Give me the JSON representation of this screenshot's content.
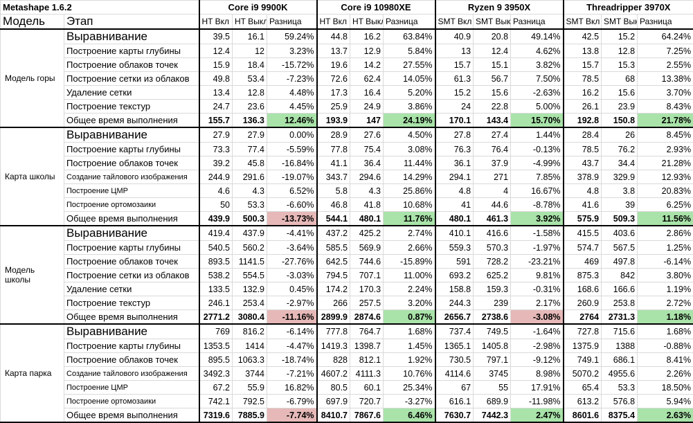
{
  "title": "Metashape 1.6.2",
  "header": {
    "model": "Модель",
    "stage": "Этап"
  },
  "colors": {
    "positive_highlight": "#a9e3a9",
    "negative_highlight": "#e6b9b8"
  },
  "cpus": [
    {
      "name": "Core i9 9900K",
      "on": "HT Вкл",
      "off": "HT Выкл",
      "diff": "Разница"
    },
    {
      "name": "Core i9 10980XE",
      "on": "HT Вкл",
      "off": "HT Выкл",
      "diff": "Разница"
    },
    {
      "name": "Ryzen 9 3950X",
      "on": "SMT Вкл",
      "off": "SMT Выкл",
      "diff": "Разница"
    },
    {
      "name": "Threadripper 3970X",
      "on": "SMT Вкл",
      "off": "SMT Выкл",
      "diff": "Разница"
    }
  ],
  "groups": [
    {
      "model": "Модель горы",
      "rows": [
        {
          "stage": "Выравнивание",
          "size": "big",
          "v": [
            [
              "39.5",
              "16.1",
              "59.24%"
            ],
            [
              "44.8",
              "16.2",
              "63.84%"
            ],
            [
              "40.9",
              "20.8",
              "49.14%"
            ],
            [
              "42.5",
              "15.2",
              "64.24%"
            ]
          ]
        },
        {
          "stage": "Построение карты глубины",
          "v": [
            [
              "12.4",
              "12",
              "3.23%"
            ],
            [
              "13.7",
              "12.9",
              "5.84%"
            ],
            [
              "13",
              "12.4",
              "4.62%"
            ],
            [
              "13.8",
              "12.8",
              "7.25%"
            ]
          ]
        },
        {
          "stage": "Построение облаков точек",
          "v": [
            [
              "15.9",
              "18.4",
              "-15.72%"
            ],
            [
              "19.6",
              "14.2",
              "27.55%"
            ],
            [
              "15.7",
              "15.1",
              "3.82%"
            ],
            [
              "15.7",
              "15.3",
              "2.55%"
            ]
          ]
        },
        {
          "stage": "Построение сетки из облаков",
          "v": [
            [
              "49.8",
              "53.4",
              "-7.23%"
            ],
            [
              "72.6",
              "62.4",
              "14.05%"
            ],
            [
              "61.3",
              "56.7",
              "7.50%"
            ],
            [
              "78.5",
              "68",
              "13.38%"
            ]
          ]
        },
        {
          "stage": "Удаление сетки",
          "v": [
            [
              "13.4",
              "12.8",
              "4.48%"
            ],
            [
              "17.3",
              "16.4",
              "5.20%"
            ],
            [
              "15.2",
              "15.6",
              "-2.63%"
            ],
            [
              "16.2",
              "15.6",
              "3.70%"
            ]
          ]
        },
        {
          "stage": "Построение текстур",
          "v": [
            [
              "24.7",
              "23.6",
              "4.45%"
            ],
            [
              "25.9",
              "24.9",
              "3.86%"
            ],
            [
              "24",
              "22.8",
              "5.00%"
            ],
            [
              "26.1",
              "23.9",
              "8.43%"
            ]
          ]
        },
        {
          "stage": "Общее время выполнения",
          "total": true,
          "v": [
            [
              "155.7",
              "136.3",
              "12.46%"
            ],
            [
              "193.9",
              "147",
              "24.19%"
            ],
            [
              "170.1",
              "143.4",
              "15.70%"
            ],
            [
              "192.8",
              "150.8",
              "21.78%"
            ]
          ]
        }
      ]
    },
    {
      "model": "Карта школы",
      "rows": [
        {
          "stage": "Выравнивание",
          "size": "big",
          "v": [
            [
              "27.9",
              "27.9",
              "0.00%"
            ],
            [
              "28.9",
              "27.6",
              "4.50%"
            ],
            [
              "27.8",
              "27.4",
              "1.44%"
            ],
            [
              "28.4",
              "26",
              "8.45%"
            ]
          ]
        },
        {
          "stage": "Построение карты глубины",
          "v": [
            [
              "73.3",
              "77.4",
              "-5.59%"
            ],
            [
              "77.8",
              "75.4",
              "3.08%"
            ],
            [
              "76.3",
              "76.4",
              "-0.13%"
            ],
            [
              "78.5",
              "76.2",
              "2.93%"
            ]
          ]
        },
        {
          "stage": "Построение облаков точек",
          "v": [
            [
              "39.2",
              "45.8",
              "-16.84%"
            ],
            [
              "41.1",
              "36.4",
              "11.44%"
            ],
            [
              "36.1",
              "37.9",
              "-4.99%"
            ],
            [
              "43.7",
              "34.4",
              "21.28%"
            ]
          ]
        },
        {
          "stage": "Создание тайлового изображения",
          "size": "small",
          "v": [
            [
              "244.9",
              "291.6",
              "-19.07%"
            ],
            [
              "343.7",
              "294.6",
              "14.29%"
            ],
            [
              "294.1",
              "271",
              "7.85%"
            ],
            [
              "378.9",
              "329.9",
              "12.93%"
            ]
          ]
        },
        {
          "stage": "Построение ЦМР",
          "size": "small",
          "v": [
            [
              "4.6",
              "4.3",
              "6.52%"
            ],
            [
              "5.8",
              "4.3",
              "25.86%"
            ],
            [
              "4.8",
              "4",
              "16.67%"
            ],
            [
              "4.8",
              "3.8",
              "20.83%"
            ]
          ]
        },
        {
          "stage": "Построение ортомозаики",
          "size": "small",
          "v": [
            [
              "50",
              "53.3",
              "-6.60%"
            ],
            [
              "46.8",
              "41.8",
              "10.68%"
            ],
            [
              "41",
              "44.6",
              "-8.78%"
            ],
            [
              "41.6",
              "39",
              "6.25%"
            ]
          ]
        },
        {
          "stage": "Общее время выполнения",
          "total": true,
          "v": [
            [
              "439.9",
              "500.3",
              "-13.73%"
            ],
            [
              "544.1",
              "480.1",
              "11.76%"
            ],
            [
              "480.1",
              "461.3",
              "3.92%"
            ],
            [
              "575.9",
              "509.3",
              "11.56%"
            ]
          ]
        }
      ]
    },
    {
      "model": "Модель школы",
      "rows": [
        {
          "stage": "Выравнивание",
          "size": "big",
          "v": [
            [
              "419.4",
              "437.9",
              "-4.41%"
            ],
            [
              "437.2",
              "425.2",
              "2.74%"
            ],
            [
              "410.1",
              "416.6",
              "-1.58%"
            ],
            [
              "415.5",
              "403.6",
              "2.86%"
            ]
          ]
        },
        {
          "stage": "Построение карты глубины",
          "v": [
            [
              "540.5",
              "560.2",
              "-3.64%"
            ],
            [
              "585.5",
              "569.9",
              "2.66%"
            ],
            [
              "559.3",
              "570.3",
              "-1.97%"
            ],
            [
              "574.7",
              "567.5",
              "1.25%"
            ]
          ]
        },
        {
          "stage": "Построение облаков точек",
          "v": [
            [
              "893.5",
              "1141.5",
              "-27.76%"
            ],
            [
              "642.5",
              "744.6",
              "-15.89%"
            ],
            [
              "591",
              "728.2",
              "-23.21%"
            ],
            [
              "469",
              "497.8",
              "-6.14%"
            ]
          ]
        },
        {
          "stage": "Построение сетки из облаков",
          "v": [
            [
              "538.2",
              "554.5",
              "-3.03%"
            ],
            [
              "794.5",
              "707.1",
              "11.00%"
            ],
            [
              "693.2",
              "625.2",
              "9.81%"
            ],
            [
              "875.3",
              "842",
              "3.80%"
            ]
          ]
        },
        {
          "stage": "Удаление сетки",
          "v": [
            [
              "133.5",
              "132.9",
              "0.45%"
            ],
            [
              "174.2",
              "170.3",
              "2.24%"
            ],
            [
              "158.8",
              "159.3",
              "-0.31%"
            ],
            [
              "168.6",
              "166.6",
              "1.19%"
            ]
          ]
        },
        {
          "stage": "Построение текстур",
          "v": [
            [
              "246.1",
              "253.4",
              "-2.97%"
            ],
            [
              "266",
              "257.5",
              "3.20%"
            ],
            [
              "244.3",
              "239",
              "2.17%"
            ],
            [
              "260.9",
              "253.8",
              "2.72%"
            ]
          ]
        },
        {
          "stage": "Общее время выполнения",
          "total": true,
          "v": [
            [
              "2771.2",
              "3080.4",
              "-11.16%"
            ],
            [
              "2899.9",
              "2874.6",
              "0.87%"
            ],
            [
              "2656.7",
              "2738.6",
              "-3.08%"
            ],
            [
              "2764",
              "2731.3",
              "1.18%"
            ]
          ]
        }
      ]
    },
    {
      "model": "Карта парка",
      "rows": [
        {
          "stage": "Выравнивание",
          "size": "big",
          "v": [
            [
              "769",
              "816.2",
              "-6.14%"
            ],
            [
              "777.8",
              "764.7",
              "1.68%"
            ],
            [
              "737.4",
              "749.5",
              "-1.64%"
            ],
            [
              "727.8",
              "715.6",
              "1.68%"
            ]
          ]
        },
        {
          "stage": "Построение карты глубины",
          "v": [
            [
              "1353.5",
              "1414",
              "-4.47%"
            ],
            [
              "1419.3",
              "1398.7",
              "1.45%"
            ],
            [
              "1365.1",
              "1405.8",
              "-2.98%"
            ],
            [
              "1375.9",
              "1388",
              "-0.88%"
            ]
          ]
        },
        {
          "stage": "Построение облаков точек",
          "v": [
            [
              "895.5",
              "1063.3",
              "-18.74%"
            ],
            [
              "828",
              "812.1",
              "1.92%"
            ],
            [
              "730.5",
              "797.1",
              "-9.12%"
            ],
            [
              "749.1",
              "686.1",
              "8.41%"
            ]
          ]
        },
        {
          "stage": "Создание тайлового изображения",
          "size": "small",
          "v": [
            [
              "3492.3",
              "3744",
              "-7.21%"
            ],
            [
              "4607.2",
              "4111.3",
              "10.76%"
            ],
            [
              "4114.6",
              "3745",
              "8.98%"
            ],
            [
              "5070.2",
              "4955.6",
              "2.26%"
            ]
          ]
        },
        {
          "stage": "Построение ЦМР",
          "size": "small",
          "v": [
            [
              "67.2",
              "55.9",
              "16.82%"
            ],
            [
              "80.5",
              "60.1",
              "25.34%"
            ],
            [
              "67",
              "55",
              "17.91%"
            ],
            [
              "65.4",
              "53.3",
              "18.50%"
            ]
          ]
        },
        {
          "stage": "Построение ортомозаики",
          "size": "small",
          "v": [
            [
              "742.1",
              "792.5",
              "-6.79%"
            ],
            [
              "697.9",
              "720.7",
              "-3.27%"
            ],
            [
              "616.1",
              "689.9",
              "-11.98%"
            ],
            [
              "613.2",
              "576.8",
              "5.94%"
            ]
          ]
        },
        {
          "stage": "Общее время выполнения",
          "total": true,
          "v": [
            [
              "7319.6",
              "7885.9",
              "-7.74%"
            ],
            [
              "8410.7",
              "7867.6",
              "6.46%"
            ],
            [
              "7630.7",
              "7442.3",
              "2.47%"
            ],
            [
              "8601.6",
              "8375.4",
              "2.63%"
            ]
          ]
        }
      ]
    }
  ]
}
